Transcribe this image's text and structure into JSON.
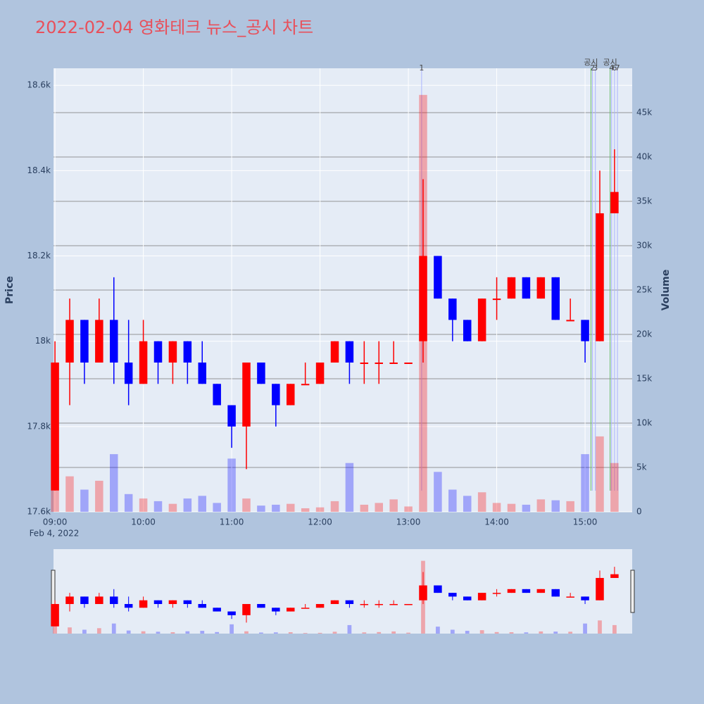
{
  "chart_data": {
    "type": "candlestick",
    "title": "2022-02-04 영화테크 뉴스_공시 차트",
    "date_label": "Feb 4, 2022",
    "ylabel": "Price",
    "y2label": "Volume",
    "increasing_color": "#ff0000",
    "decreasing_color": "#0000ff",
    "x": [
      "09:00",
      "09:10",
      "09:20",
      "09:30",
      "09:40",
      "09:50",
      "10:00",
      "10:10",
      "10:20",
      "10:30",
      "10:40",
      "10:50",
      "11:00",
      "11:10",
      "11:20",
      "11:30",
      "11:40",
      "11:50",
      "12:00",
      "12:10",
      "12:20",
      "12:30",
      "12:40",
      "12:50",
      "13:00",
      "13:10",
      "13:20",
      "13:30",
      "13:40",
      "13:50",
      "14:00",
      "14:10",
      "14:20",
      "14:30",
      "14:40",
      "14:50",
      "15:00",
      "15:10",
      "15:20"
    ],
    "open": [
      17650,
      17950,
      18050,
      17950,
      18050,
      17950,
      17900,
      18000,
      17950,
      18000,
      17950,
      17900,
      17850,
      17800,
      17950,
      17900,
      17850,
      17900,
      17900,
      17950,
      18000,
      17950,
      17950,
      17950,
      17950,
      18000,
      18200,
      18100,
      18050,
      18000,
      18100,
      18100,
      18150,
      18100,
      18150,
      18050,
      18050,
      18000,
      18300
    ],
    "high": [
      18000,
      18100,
      18050,
      18100,
      18150,
      18050,
      18050,
      18000,
      18000,
      18000,
      18000,
      17900,
      17850,
      17950,
      17950,
      17900,
      17900,
      17950,
      17950,
      18000,
      18000,
      18000,
      18000,
      18000,
      17950,
      18380,
      18200,
      18100,
      18050,
      18100,
      18150,
      18150,
      18150,
      18150,
      18150,
      18100,
      18050,
      18400,
      18450
    ],
    "low": [
      17650,
      17850,
      17900,
      17950,
      17900,
      17850,
      17900,
      17900,
      17900,
      17900,
      17900,
      17850,
      17750,
      17700,
      17900,
      17800,
      17850,
      17900,
      17900,
      17950,
      17900,
      17900,
      17900,
      17950,
      17950,
      17950,
      18100,
      18000,
      18000,
      18000,
      18050,
      18100,
      18100,
      18100,
      18050,
      18050,
      17950,
      18000,
      18300
    ],
    "close": [
      17950,
      18050,
      17950,
      18050,
      17950,
      17900,
      18000,
      17950,
      18000,
      17950,
      17900,
      17850,
      17800,
      17950,
      17900,
      17850,
      17900,
      17900,
      17950,
      18000,
      17950,
      17950,
      17950,
      17950,
      17950,
      18200,
      18100,
      18050,
      18000,
      18100,
      18100,
      18150,
      18100,
      18150,
      18050,
      18050,
      18000,
      18300,
      18350
    ],
    "volume": [
      6500,
      4000,
      2500,
      3500,
      6500,
      2000,
      1500,
      1200,
      900,
      1500,
      1800,
      1000,
      6000,
      1500,
      700,
      800,
      900,
      400,
      500,
      1200,
      5500,
      800,
      1000,
      1400,
      600,
      47000,
      4500,
      2500,
      1800,
      2200,
      1000,
      900,
      800,
      1400,
      1300,
      1200,
      6500,
      8500,
      5500
    ],
    "xticks": [
      "09:00",
      "10:00",
      "11:00",
      "12:00",
      "13:00",
      "14:00",
      "15:00"
    ],
    "xlim": [
      "08:59",
      "15:32"
    ],
    "ylim": [
      17600,
      18640
    ],
    "yticks": [
      {
        "value": 17600,
        "label": "17.6k"
      },
      {
        "value": 17800,
        "label": "17.8k"
      },
      {
        "value": 18000,
        "label": "18k"
      },
      {
        "value": 18200,
        "label": "18.2k"
      },
      {
        "value": 18400,
        "label": "18.4k"
      },
      {
        "value": 18600,
        "label": "18.6k"
      }
    ],
    "y2lim": [
      0,
      50000
    ],
    "y2ticks": [
      0,
      {
        "value": 5000,
        "label": "5k"
      },
      {
        "value": 10000,
        "label": "10k"
      },
      {
        "value": 15000,
        "label": "15k"
      },
      {
        "value": 20000,
        "label": "20k"
      },
      {
        "value": 25000,
        "label": "25k"
      },
      {
        "value": 30000,
        "label": "30k"
      },
      {
        "value": 35000,
        "label": "35k"
      },
      {
        "value": 40000,
        "label": "40k"
      },
      {
        "value": 45000,
        "label": "45k"
      }
    ],
    "annotations": [
      {
        "x": "13:09",
        "label": "1",
        "color": "#aab4ff"
      },
      {
        "x": "15:05",
        "label": "2",
        "color": "#aab4ff"
      },
      {
        "x": "15:07",
        "label": "3",
        "color": "#aab4ff"
      },
      {
        "x": "15:04",
        "label": "공시",
        "color": "#66bb66"
      },
      {
        "x": "15:17",
        "label": "공시",
        "color": "#66bb66"
      },
      {
        "x": "15:18",
        "label": "4",
        "color": "#aab4ff"
      },
      {
        "x": "15:20",
        "label": "6",
        "color": "#aab4ff"
      },
      {
        "x": "15:22",
        "label": "7",
        "color": "#aab4ff"
      }
    ]
  }
}
